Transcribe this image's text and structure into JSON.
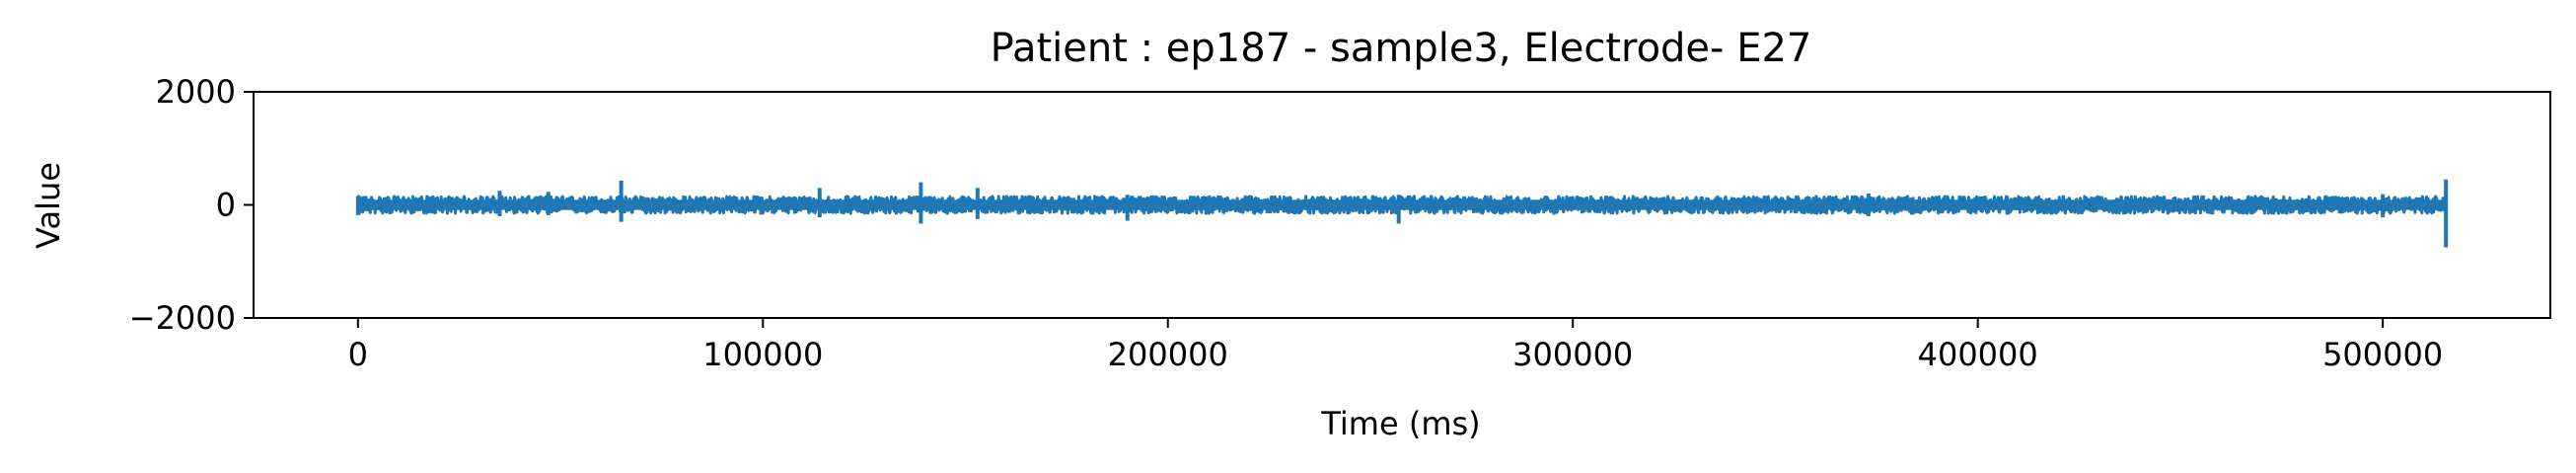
{
  "chart_data": {
    "type": "line",
    "title": "Patient : ep187 - sample3, Electrode- E27",
    "xlabel": "Time (ms)",
    "ylabel": "Value",
    "xlim": [
      -25780,
      541380
    ],
    "ylim": [
      -2000,
      2000
    ],
    "xticks": [
      0,
      100000,
      200000,
      300000,
      400000,
      500000
    ],
    "xtick_labels": [
      "0",
      "100000",
      "200000",
      "300000",
      "400000",
      "500000"
    ],
    "yticks": [
      -2000,
      0,
      2000
    ],
    "ytick_labels": [
      "−2000",
      "0",
      "2000"
    ],
    "grid": false,
    "legend": "none",
    "series": [
      {
        "color": "#1f77b4",
        "x_start": 0,
        "x_end": 515600,
        "typical_range": [
          -150,
          150
        ],
        "spikes": [
          {
            "x": 0,
            "min": -180,
            "max": 150
          },
          {
            "x": 35000,
            "min": -200,
            "max": 250
          },
          {
            "x": 47000,
            "min": -180,
            "max": 230
          },
          {
            "x": 65000,
            "min": -300,
            "max": 430
          },
          {
            "x": 114000,
            "min": -220,
            "max": 300
          },
          {
            "x": 139000,
            "min": -330,
            "max": 400
          },
          {
            "x": 153000,
            "min": -250,
            "max": 300
          },
          {
            "x": 190000,
            "min": -280,
            "max": 180
          },
          {
            "x": 257000,
            "min": -330,
            "max": 180
          },
          {
            "x": 373000,
            "min": -200,
            "max": 200
          },
          {
            "x": 500000,
            "min": -220,
            "max": 190
          },
          {
            "x": 515600,
            "min": -750,
            "max": 450
          }
        ]
      }
    ]
  }
}
